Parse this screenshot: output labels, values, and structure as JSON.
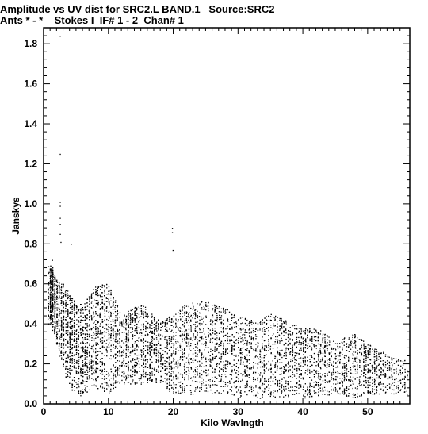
{
  "header": {
    "line1": "Amplitude vs UV dist for SRC2.L BAND.1   Source:SRC2",
    "line2": "Ants * - *    Stokes I  IF# 1 - 2  Chan# 1"
  },
  "chart_data": {
    "type": "scatter",
    "title": "Amplitude vs UV dist for SRC2.L BAND.1   Source:SRC2",
    "subtitle": "Ants * - *    Stokes I  IF# 1 - 2  Chan# 1",
    "xlabel": "Kilo Wavlngth",
    "ylabel": "Janskys",
    "xlim": [
      0,
      56.5
    ],
    "ylim": [
      0,
      1.88
    ],
    "x_ticks": [
      0,
      10,
      20,
      30,
      40,
      50
    ],
    "y_ticks": [
      0.0,
      0.2,
      0.4,
      0.6,
      0.8,
      1.0,
      1.2,
      1.4,
      1.6,
      1.8
    ],
    "x_tick_labels": [
      "0",
      "10",
      "20",
      "30",
      "40",
      "50"
    ],
    "y_tick_labels": [
      "0.0",
      "0.2",
      "0.4",
      "0.6",
      "0.8",
      "1.0",
      "1.2",
      "1.4",
      "1.6",
      "1.8"
    ],
    "grid": false,
    "marker_color": "#000000",
    "band_profile": [
      {
        "x": 1,
        "low": 0.4,
        "high": 0.7
      },
      {
        "x": 2,
        "low": 0.3,
        "high": 0.62
      },
      {
        "x": 3,
        "low": 0.15,
        "high": 0.6
      },
      {
        "x": 4,
        "low": 0.1,
        "high": 0.55
      },
      {
        "x": 5,
        "low": 0.02,
        "high": 0.5
      },
      {
        "x": 6,
        "low": 0.05,
        "high": 0.5
      },
      {
        "x": 8,
        "low": 0.08,
        "high": 0.6
      },
      {
        "x": 10,
        "low": 0.05,
        "high": 0.6
      },
      {
        "x": 12,
        "low": 0.1,
        "high": 0.45
      },
      {
        "x": 15,
        "low": 0.1,
        "high": 0.5
      },
      {
        "x": 18,
        "low": 0.1,
        "high": 0.42
      },
      {
        "x": 20,
        "low": 0.05,
        "high": 0.45
      },
      {
        "x": 22,
        "low": 0.05,
        "high": 0.5
      },
      {
        "x": 25,
        "low": 0.05,
        "high": 0.52
      },
      {
        "x": 28,
        "low": 0.05,
        "high": 0.48
      },
      {
        "x": 30,
        "low": 0.03,
        "high": 0.45
      },
      {
        "x": 32,
        "low": 0.03,
        "high": 0.42
      },
      {
        "x": 35,
        "low": 0.03,
        "high": 0.45
      },
      {
        "x": 38,
        "low": 0.03,
        "high": 0.42
      },
      {
        "x": 40,
        "low": 0.03,
        "high": 0.38
      },
      {
        "x": 42,
        "low": 0.03,
        "high": 0.38
      },
      {
        "x": 45,
        "low": 0.05,
        "high": 0.32
      },
      {
        "x": 48,
        "low": 0.03,
        "high": 0.35
      },
      {
        "x": 50,
        "low": 0.05,
        "high": 0.3
      },
      {
        "x": 53,
        "low": 0.05,
        "high": 0.25
      },
      {
        "x": 55,
        "low": 0.05,
        "high": 0.22
      }
    ],
    "outliers": [
      {
        "x": 2.5,
        "y": 1.84
      },
      {
        "x": 2.5,
        "y": 1.25
      },
      {
        "x": 2.5,
        "y": 1.01
      },
      {
        "x": 2.5,
        "y": 0.99
      },
      {
        "x": 2.5,
        "y": 0.93
      },
      {
        "x": 2.5,
        "y": 0.9
      },
      {
        "x": 2.5,
        "y": 0.85
      },
      {
        "x": 2.6,
        "y": 0.81
      },
      {
        "x": 4.2,
        "y": 0.8
      },
      {
        "x": 19.8,
        "y": 0.88
      },
      {
        "x": 19.8,
        "y": 0.86
      },
      {
        "x": 19.9,
        "y": 0.77
      },
      {
        "x": 1.3,
        "y": 0.72
      },
      {
        "x": 0.8,
        "y": 0.66
      }
    ]
  }
}
